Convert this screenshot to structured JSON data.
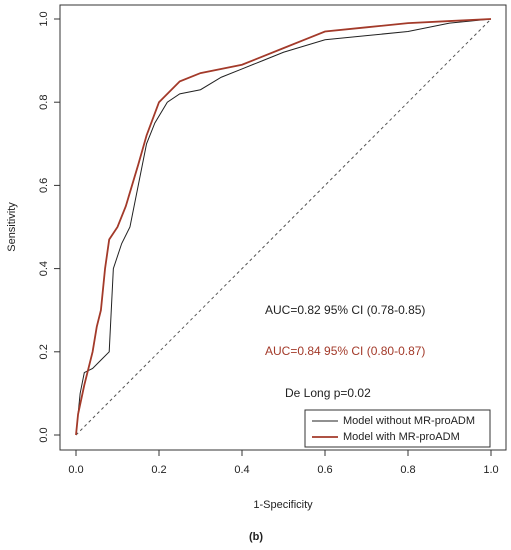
{
  "chart_data": {
    "type": "line",
    "xlabel": "1-Specificity",
    "ylabel": "Sensitivity",
    "caption": "(b)",
    "xlim": [
      0,
      1
    ],
    "ylim": [
      0,
      1
    ],
    "xticks": [
      {
        "value": 0,
        "label": "0.0"
      },
      0.2,
      0.4,
      0.6,
      0.8,
      {
        "value": 1,
        "label": "1.0"
      }
    ],
    "yticks": [
      {
        "value": 0,
        "label": "0.0"
      },
      0.2,
      0.4,
      0.6,
      0.8,
      {
        "value": 1,
        "label": "1.0"
      }
    ],
    "legend": "lower right",
    "annotations": [
      {
        "text": "AUC=0.82 95% CI (0.78-0.85)",
        "color": "#222222"
      },
      {
        "text": "AUC=0.84 95% CI (0.80-0.87)",
        "color": "#a33a2a"
      },
      {
        "text": "De Long p=0.02",
        "color": "#222222"
      }
    ],
    "series": [
      {
        "name": "Model without MR-proADM",
        "color": "#222222",
        "x": [
          0,
          0.005,
          0.01,
          0.02,
          0.04,
          0.06,
          0.08,
          0.085,
          0.09,
          0.11,
          0.13,
          0.15,
          0.17,
          0.19,
          0.22,
          0.25,
          0.3,
          0.35,
          0.4,
          0.45,
          0.5,
          0.6,
          0.7,
          0.8,
          0.9,
          1
        ],
        "values": [
          0,
          0.05,
          0.1,
          0.15,
          0.16,
          0.18,
          0.2,
          0.3,
          0.4,
          0.46,
          0.5,
          0.6,
          0.7,
          0.75,
          0.8,
          0.82,
          0.83,
          0.86,
          0.88,
          0.9,
          0.92,
          0.95,
          0.96,
          0.97,
          0.99,
          1
        ]
      },
      {
        "name": "Model with MR-proADM",
        "color": "#a33a2a",
        "x": [
          0,
          0.005,
          0.02,
          0.04,
          0.05,
          0.06,
          0.07,
          0.08,
          0.1,
          0.12,
          0.15,
          0.17,
          0.2,
          0.25,
          0.3,
          0.4,
          0.45,
          0.5,
          0.55,
          0.6,
          0.7,
          0.8,
          0.9,
          1
        ],
        "values": [
          0,
          0.05,
          0.12,
          0.2,
          0.26,
          0.3,
          0.4,
          0.47,
          0.5,
          0.55,
          0.65,
          0.72,
          0.8,
          0.85,
          0.87,
          0.89,
          0.91,
          0.93,
          0.95,
          0.97,
          0.98,
          0.99,
          0.995,
          1
        ]
      }
    ]
  }
}
